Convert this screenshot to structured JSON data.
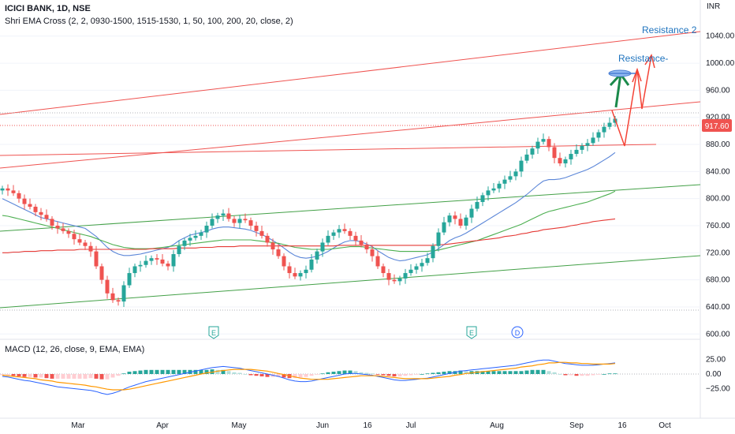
{
  "header": {
    "symbol": "ICICI BANK, 1D, NSE",
    "indicator": "Shri EMA Cross (2, 2, 0930-1500, 1515-1530, 1, 50, 100, 200, 20, close, 2)"
  },
  "macd_header": "MACD (12, 26, close, 9, EMA, EMA)",
  "currency": "INR",
  "colors": {
    "up": "#26a69a",
    "down": "#ef5350",
    "ema20": "#5b86d8",
    "ema50": "#4caf50",
    "ema200": "#e53935",
    "macd": "#2962ff",
    "signal": "#ff9800",
    "annot_blue": "#1e73be"
  },
  "chart_data": {
    "type": "candlestick",
    "x_labels": [
      "Mar",
      "Apr",
      "May",
      "Jun",
      "16",
      "Jul",
      "Aug",
      "Sep",
      "16",
      "Oct"
    ],
    "y_ticks": [
      600,
      640,
      680,
      720,
      760,
      800,
      840,
      880,
      920,
      960,
      1000,
      1040
    ],
    "y_tick_labels": [
      "600.00",
      "640.00",
      "680.00",
      "720.00",
      "760.00",
      "800.00",
      "840.00",
      "880.00",
      "920.00",
      "960.00",
      "1000.00",
      "1040.00"
    ],
    "ylim": [
      598,
      1070
    ],
    "last_price": "917.60",
    "macd_ticks": [
      "25.00",
      "0.00",
      "−25.00"
    ],
    "macd_tick_values": [
      25,
      0,
      -25
    ],
    "annotations": [
      "Resistance 2",
      "Resistance-"
    ],
    "event_markers": [
      "E",
      "E",
      "D"
    ],
    "closes": [
      815,
      812,
      808,
      800,
      792,
      788,
      780,
      776,
      770,
      760,
      756,
      752,
      748,
      740,
      735,
      730,
      722,
      700,
      680,
      660,
      650,
      648,
      672,
      690,
      700,
      702,
      708,
      712,
      710,
      704,
      700,
      718,
      730,
      738,
      742,
      745,
      750,
      760,
      770,
      775,
      778,
      770,
      764,
      770,
      768,
      760,
      752,
      745,
      735,
      725,
      715,
      700,
      690,
      685,
      690,
      695,
      710,
      722,
      735,
      745,
      750,
      755,
      752,
      745,
      738,
      732,
      725,
      715,
      700,
      690,
      680,
      678,
      682,
      690,
      695,
      700,
      705,
      712,
      730,
      750,
      765,
      775,
      770,
      760,
      772,
      785,
      795,
      805,
      812,
      815,
      822,
      828,
      833,
      840,
      856,
      865,
      874,
      884,
      888,
      876,
      860,
      852,
      858,
      866,
      872,
      878,
      882,
      890,
      898,
      906,
      912,
      918
    ],
    "ema20": [
      800,
      796,
      792,
      788,
      784,
      780,
      776,
      772,
      770,
      768,
      766,
      764,
      762,
      760,
      758,
      756,
      750,
      744,
      736,
      728,
      722,
      718,
      716,
      716,
      717,
      718,
      720,
      722,
      724,
      726,
      728,
      732,
      738,
      742,
      746,
      748,
      750,
      752,
      755,
      757,
      758,
      758,
      757,
      756,
      755,
      753,
      750,
      747,
      743,
      738,
      733,
      727,
      721,
      716,
      713,
      712,
      713,
      715,
      718,
      722,
      727,
      732,
      736,
      738,
      738,
      736,
      733,
      729,
      723,
      718,
      713,
      710,
      708,
      709,
      711,
      713,
      715,
      717,
      721,
      726,
      732,
      738,
      742,
      745,
      749,
      754,
      759,
      764,
      769,
      774,
      779,
      784,
      789,
      794,
      800,
      806,
      813,
      820,
      826,
      828,
      828,
      829,
      831,
      834,
      837,
      840,
      843,
      847,
      852,
      857,
      862,
      868
    ],
    "ema50": [
      775,
      774,
      772,
      770,
      768,
      766,
      764,
      762,
      760,
      758,
      756,
      754,
      752,
      750,
      748,
      746,
      744,
      741,
      738,
      735,
      732,
      730,
      728,
      727,
      726,
      726,
      726,
      726,
      727,
      728,
      729,
      730,
      731,
      732,
      733,
      734,
      735,
      736,
      737,
      738,
      739,
      739,
      739,
      739,
      739,
      739,
      738,
      737,
      736,
      735,
      734,
      732,
      730,
      728,
      727,
      726,
      725,
      725,
      725,
      725,
      726,
      727,
      728,
      729,
      729,
      729,
      728,
      727,
      726,
      725,
      724,
      723,
      722,
      722,
      722,
      722,
      722,
      722,
      723,
      724,
      726,
      728,
      730,
      732,
      734,
      736,
      738,
      741,
      744,
      747,
      750,
      753,
      756,
      759,
      762,
      766,
      770,
      774,
      778,
      781,
      783,
      785,
      787,
      789,
      791,
      793,
      795,
      798,
      801,
      804,
      807,
      811
    ],
    "ema200": [
      720,
      720,
      721,
      721,
      722,
      722,
      722,
      723,
      723,
      723,
      724,
      724,
      724,
      724,
      725,
      725,
      725,
      725,
      725,
      725,
      725,
      725,
      725,
      725,
      725,
      725,
      725,
      726,
      726,
      726,
      726,
      726,
      727,
      727,
      727,
      727,
      728,
      728,
      728,
      729,
      729,
      729,
      729,
      730,
      730,
      730,
      730,
      730,
      730,
      730,
      730,
      730,
      730,
      730,
      730,
      730,
      730,
      730,
      730,
      730,
      730,
      731,
      731,
      731,
      731,
      731,
      731,
      731,
      731,
      731,
      731,
      731,
      731,
      731,
      731,
      731,
      731,
      731,
      731,
      732,
      732,
      733,
      734,
      735,
      736,
      737,
      738,
      739,
      740,
      741,
      742,
      744,
      745,
      746,
      748,
      749,
      751,
      752,
      754,
      755,
      756,
      757,
      758,
      760,
      761,
      763,
      764,
      766,
      767,
      768,
      769,
      770
    ],
    "macd": [
      -4,
      -5,
      -7,
      -9,
      -11,
      -12,
      -14,
      -16,
      -18,
      -20,
      -22,
      -23,
      -24,
      -25,
      -26,
      -27,
      -28,
      -30,
      -33,
      -35,
      -33,
      -30,
      -26,
      -22,
      -19,
      -16,
      -13,
      -11,
      -9,
      -7,
      -5,
      -3,
      -1,
      1,
      3,
      5,
      7,
      9,
      11,
      12,
      13,
      12,
      11,
      10,
      8,
      6,
      4,
      2,
      0,
      -2,
      -4,
      -7,
      -10,
      -12,
      -13,
      -13,
      -12,
      -10,
      -8,
      -6,
      -4,
      -2,
      0,
      1,
      1,
      0,
      -1,
      -2,
      -4,
      -6,
      -8,
      -10,
      -11,
      -11,
      -10,
      -9,
      -8,
      -7,
      -5,
      -3,
      -1,
      1,
      3,
      5,
      6,
      7,
      8,
      9,
      10,
      11,
      12,
      13,
      14,
      15,
      17,
      19,
      21,
      23,
      24,
      24,
      22,
      20,
      18,
      17,
      16,
      15,
      15,
      15,
      16,
      17,
      18,
      19
    ],
    "signal": [
      -2,
      -3,
      -4,
      -5,
      -6,
      -7,
      -8,
      -10,
      -11,
      -12,
      -14,
      -15,
      -16,
      -17,
      -18,
      -19,
      -21,
      -22,
      -24,
      -26,
      -27,
      -27,
      -27,
      -26,
      -24,
      -22,
      -20,
      -18,
      -16,
      -14,
      -12,
      -10,
      -8,
      -6,
      -4,
      -2,
      0,
      2,
      3,
      5,
      6,
      7,
      8,
      8,
      8,
      8,
      7,
      6,
      5,
      3,
      1,
      -1,
      -3,
      -5,
      -7,
      -8,
      -9,
      -9,
      -9,
      -9,
      -8,
      -7,
      -6,
      -5,
      -4,
      -3,
      -3,
      -3,
      -3,
      -4,
      -5,
      -6,
      -7,
      -8,
      -8,
      -8,
      -8,
      -8,
      -7,
      -6,
      -5,
      -4,
      -2,
      -1,
      1,
      2,
      3,
      4,
      5,
      6,
      7,
      8,
      9,
      10,
      12,
      13,
      14,
      16,
      17,
      19,
      19,
      20,
      20,
      19,
      19,
      18,
      18,
      17,
      17,
      17,
      17,
      18
    ]
  }
}
